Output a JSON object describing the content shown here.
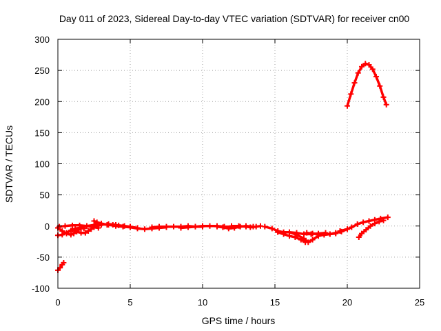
{
  "chart_data": {
    "type": "scatter",
    "title": "Day 011 of 2023, Sidereal Day-to-day VTEC variation (SDTVAR) for receiver cn00",
    "xlabel": "GPS time / hours",
    "ylabel": "SDTVAR / TECUs",
    "xlim": [
      0,
      25
    ],
    "ylim": [
      -100,
      300
    ],
    "xticks": [
      0,
      5,
      10,
      15,
      20,
      25
    ],
    "yticks": [
      -100,
      -50,
      0,
      50,
      100,
      150,
      200,
      250,
      300
    ],
    "xtick_labels": [
      "0",
      "5",
      "10",
      "15",
      "20",
      "25"
    ],
    "ytick_labels": [
      "-100",
      "-50",
      "0",
      "50",
      "100",
      "150",
      "200",
      "250",
      "300"
    ],
    "grid": true,
    "marker": "plus",
    "color": "#ff0000",
    "series": [
      {
        "name": "early-low",
        "points": [
          [
            0.0,
            -71
          ],
          [
            0.15,
            -67
          ],
          [
            0.3,
            -62
          ],
          [
            0.4,
            -59
          ]
        ]
      },
      {
        "name": "arc-0-2a",
        "points": [
          [
            0.0,
            -3
          ],
          [
            0.3,
            -8
          ],
          [
            0.6,
            -12
          ],
          [
            0.9,
            -14
          ],
          [
            1.1,
            -12
          ],
          [
            1.3,
            -8
          ],
          [
            1.6,
            -3
          ],
          [
            2.0,
            0
          ],
          [
            2.6,
            2
          ],
          [
            3.0,
            2
          ]
        ]
      },
      {
        "name": "arc-0-2b",
        "points": [
          [
            0.0,
            -15
          ],
          [
            0.3,
            -14
          ],
          [
            0.6,
            -11
          ],
          [
            0.9,
            -7
          ],
          [
            1.2,
            -4
          ],
          [
            1.5,
            -3
          ],
          [
            1.8,
            -4
          ]
        ]
      },
      {
        "name": "arc-0-2c",
        "points": [
          [
            0.1,
            -1
          ],
          [
            0.5,
            0
          ],
          [
            1.0,
            1
          ],
          [
            1.5,
            1
          ],
          [
            2.0,
            0
          ],
          [
            2.5,
            -2
          ],
          [
            2.8,
            -3
          ]
        ]
      },
      {
        "name": "arc-1-3",
        "points": [
          [
            1.0,
            -6
          ],
          [
            1.3,
            -9
          ],
          [
            1.6,
            -11
          ],
          [
            1.9,
            -11
          ],
          [
            2.1,
            -8
          ],
          [
            2.3,
            -5
          ],
          [
            2.5,
            -2
          ],
          [
            2.7,
            0
          ],
          [
            3.0,
            2
          ],
          [
            3.5,
            3
          ],
          [
            4.0,
            2
          ]
        ]
      },
      {
        "name": "arc-2-4",
        "points": [
          [
            2.5,
            8
          ],
          [
            2.7,
            6
          ],
          [
            3.0,
            4
          ],
          [
            3.4,
            2
          ],
          [
            3.8,
            2
          ],
          [
            4.2,
            1
          ],
          [
            4.6,
            0
          ],
          [
            5.0,
            -1
          ],
          [
            5.5,
            -3
          ]
        ]
      },
      {
        "name": "arc-5-7",
        "points": [
          [
            3.5,
            2
          ],
          [
            4.0,
            0
          ],
          [
            4.5,
            -1
          ],
          [
            5.0,
            -2
          ],
          [
            5.5,
            -4
          ],
          [
            6.0,
            -5
          ],
          [
            6.5,
            -4
          ],
          [
            7.0,
            -3
          ],
          [
            7.5,
            -2
          ]
        ]
      },
      {
        "name": "arc-6-9",
        "points": [
          [
            6.5,
            -2
          ],
          [
            7.0,
            -1
          ],
          [
            7.5,
            -1
          ],
          [
            8.0,
            -1
          ],
          [
            8.5,
            -1
          ],
          [
            9.0,
            0
          ],
          [
            9.5,
            -1
          ],
          [
            10.0,
            -1
          ]
        ]
      },
      {
        "name": "arc-9-11",
        "points": [
          [
            8.5,
            -3
          ],
          [
            9.0,
            -2
          ],
          [
            9.5,
            -1
          ],
          [
            10.0,
            0
          ],
          [
            10.5,
            0
          ],
          [
            11.0,
            0
          ],
          [
            11.5,
            -1
          ],
          [
            12.0,
            -1
          ]
        ]
      },
      {
        "name": "arc-11-13",
        "points": [
          [
            11.0,
            -1
          ],
          [
            11.4,
            -2
          ],
          [
            11.8,
            -4
          ],
          [
            12.2,
            -3
          ],
          [
            12.6,
            -1
          ],
          [
            13.0,
            0
          ],
          [
            13.5,
            -1
          ]
        ]
      },
      {
        "name": "arc-12-14",
        "points": [
          [
            12.0,
            0
          ],
          [
            12.5,
            0
          ],
          [
            13.0,
            -1
          ],
          [
            13.3,
            -2
          ],
          [
            13.7,
            -1
          ],
          [
            14.0,
            0
          ]
        ]
      },
      {
        "name": "arc-14-17",
        "points": [
          [
            14.3,
            -1
          ],
          [
            14.8,
            -4
          ],
          [
            15.2,
            -8
          ],
          [
            15.6,
            -10
          ],
          [
            16.0,
            -10
          ],
          [
            16.5,
            -11
          ],
          [
            17.0,
            -13
          ],
          [
            17.5,
            -13
          ],
          [
            18.0,
            -12
          ],
          [
            18.5,
            -11
          ]
        ]
      },
      {
        "name": "arc-15-17",
        "points": [
          [
            15.2,
            -10
          ],
          [
            15.6,
            -13
          ],
          [
            16.0,
            -16
          ],
          [
            16.4,
            -18
          ],
          [
            16.8,
            -22
          ],
          [
            17.1,
            -26
          ]
        ]
      },
      {
        "name": "arc-16-19",
        "points": [
          [
            16.0,
            -10
          ],
          [
            16.5,
            -14
          ],
          [
            17.0,
            -20
          ],
          [
            17.3,
            -26
          ],
          [
            17.6,
            -22
          ],
          [
            18.0,
            -16
          ],
          [
            18.4,
            -14
          ],
          [
            18.8,
            -13
          ],
          [
            19.2,
            -11
          ],
          [
            19.6,
            -9
          ],
          [
            20.0,
            -5
          ]
        ]
      },
      {
        "name": "arc-17-19",
        "points": [
          [
            17.2,
            -11
          ],
          [
            17.6,
            -12
          ],
          [
            18.0,
            -13
          ],
          [
            18.4,
            -14
          ],
          [
            18.8,
            -13
          ],
          [
            19.2,
            -12
          ]
        ]
      },
      {
        "name": "arc-19-23",
        "points": [
          [
            19.5,
            -8
          ],
          [
            20.0,
            -5
          ],
          [
            20.3,
            -2
          ],
          [
            20.7,
            3
          ],
          [
            21.1,
            6
          ],
          [
            21.5,
            8
          ],
          [
            21.9,
            10
          ],
          [
            22.3,
            12
          ],
          [
            22.8,
            14
          ]
        ]
      },
      {
        "name": "arc-20-22",
        "points": [
          [
            20.8,
            -18
          ],
          [
            21.0,
            -12
          ],
          [
            21.3,
            -6
          ],
          [
            21.6,
            0
          ],
          [
            21.9,
            4
          ],
          [
            22.2,
            7
          ],
          [
            22.5,
            9
          ]
        ]
      },
      {
        "name": "arc-high",
        "points": [
          [
            20.0,
            193
          ],
          [
            20.25,
            212
          ],
          [
            20.5,
            230
          ],
          [
            20.75,
            246
          ],
          [
            21.0,
            256
          ],
          [
            21.25,
            261
          ],
          [
            21.5,
            259
          ],
          [
            21.75,
            252
          ],
          [
            22.0,
            240
          ],
          [
            22.25,
            225
          ],
          [
            22.5,
            207
          ],
          [
            22.7,
            195
          ]
        ]
      }
    ]
  }
}
